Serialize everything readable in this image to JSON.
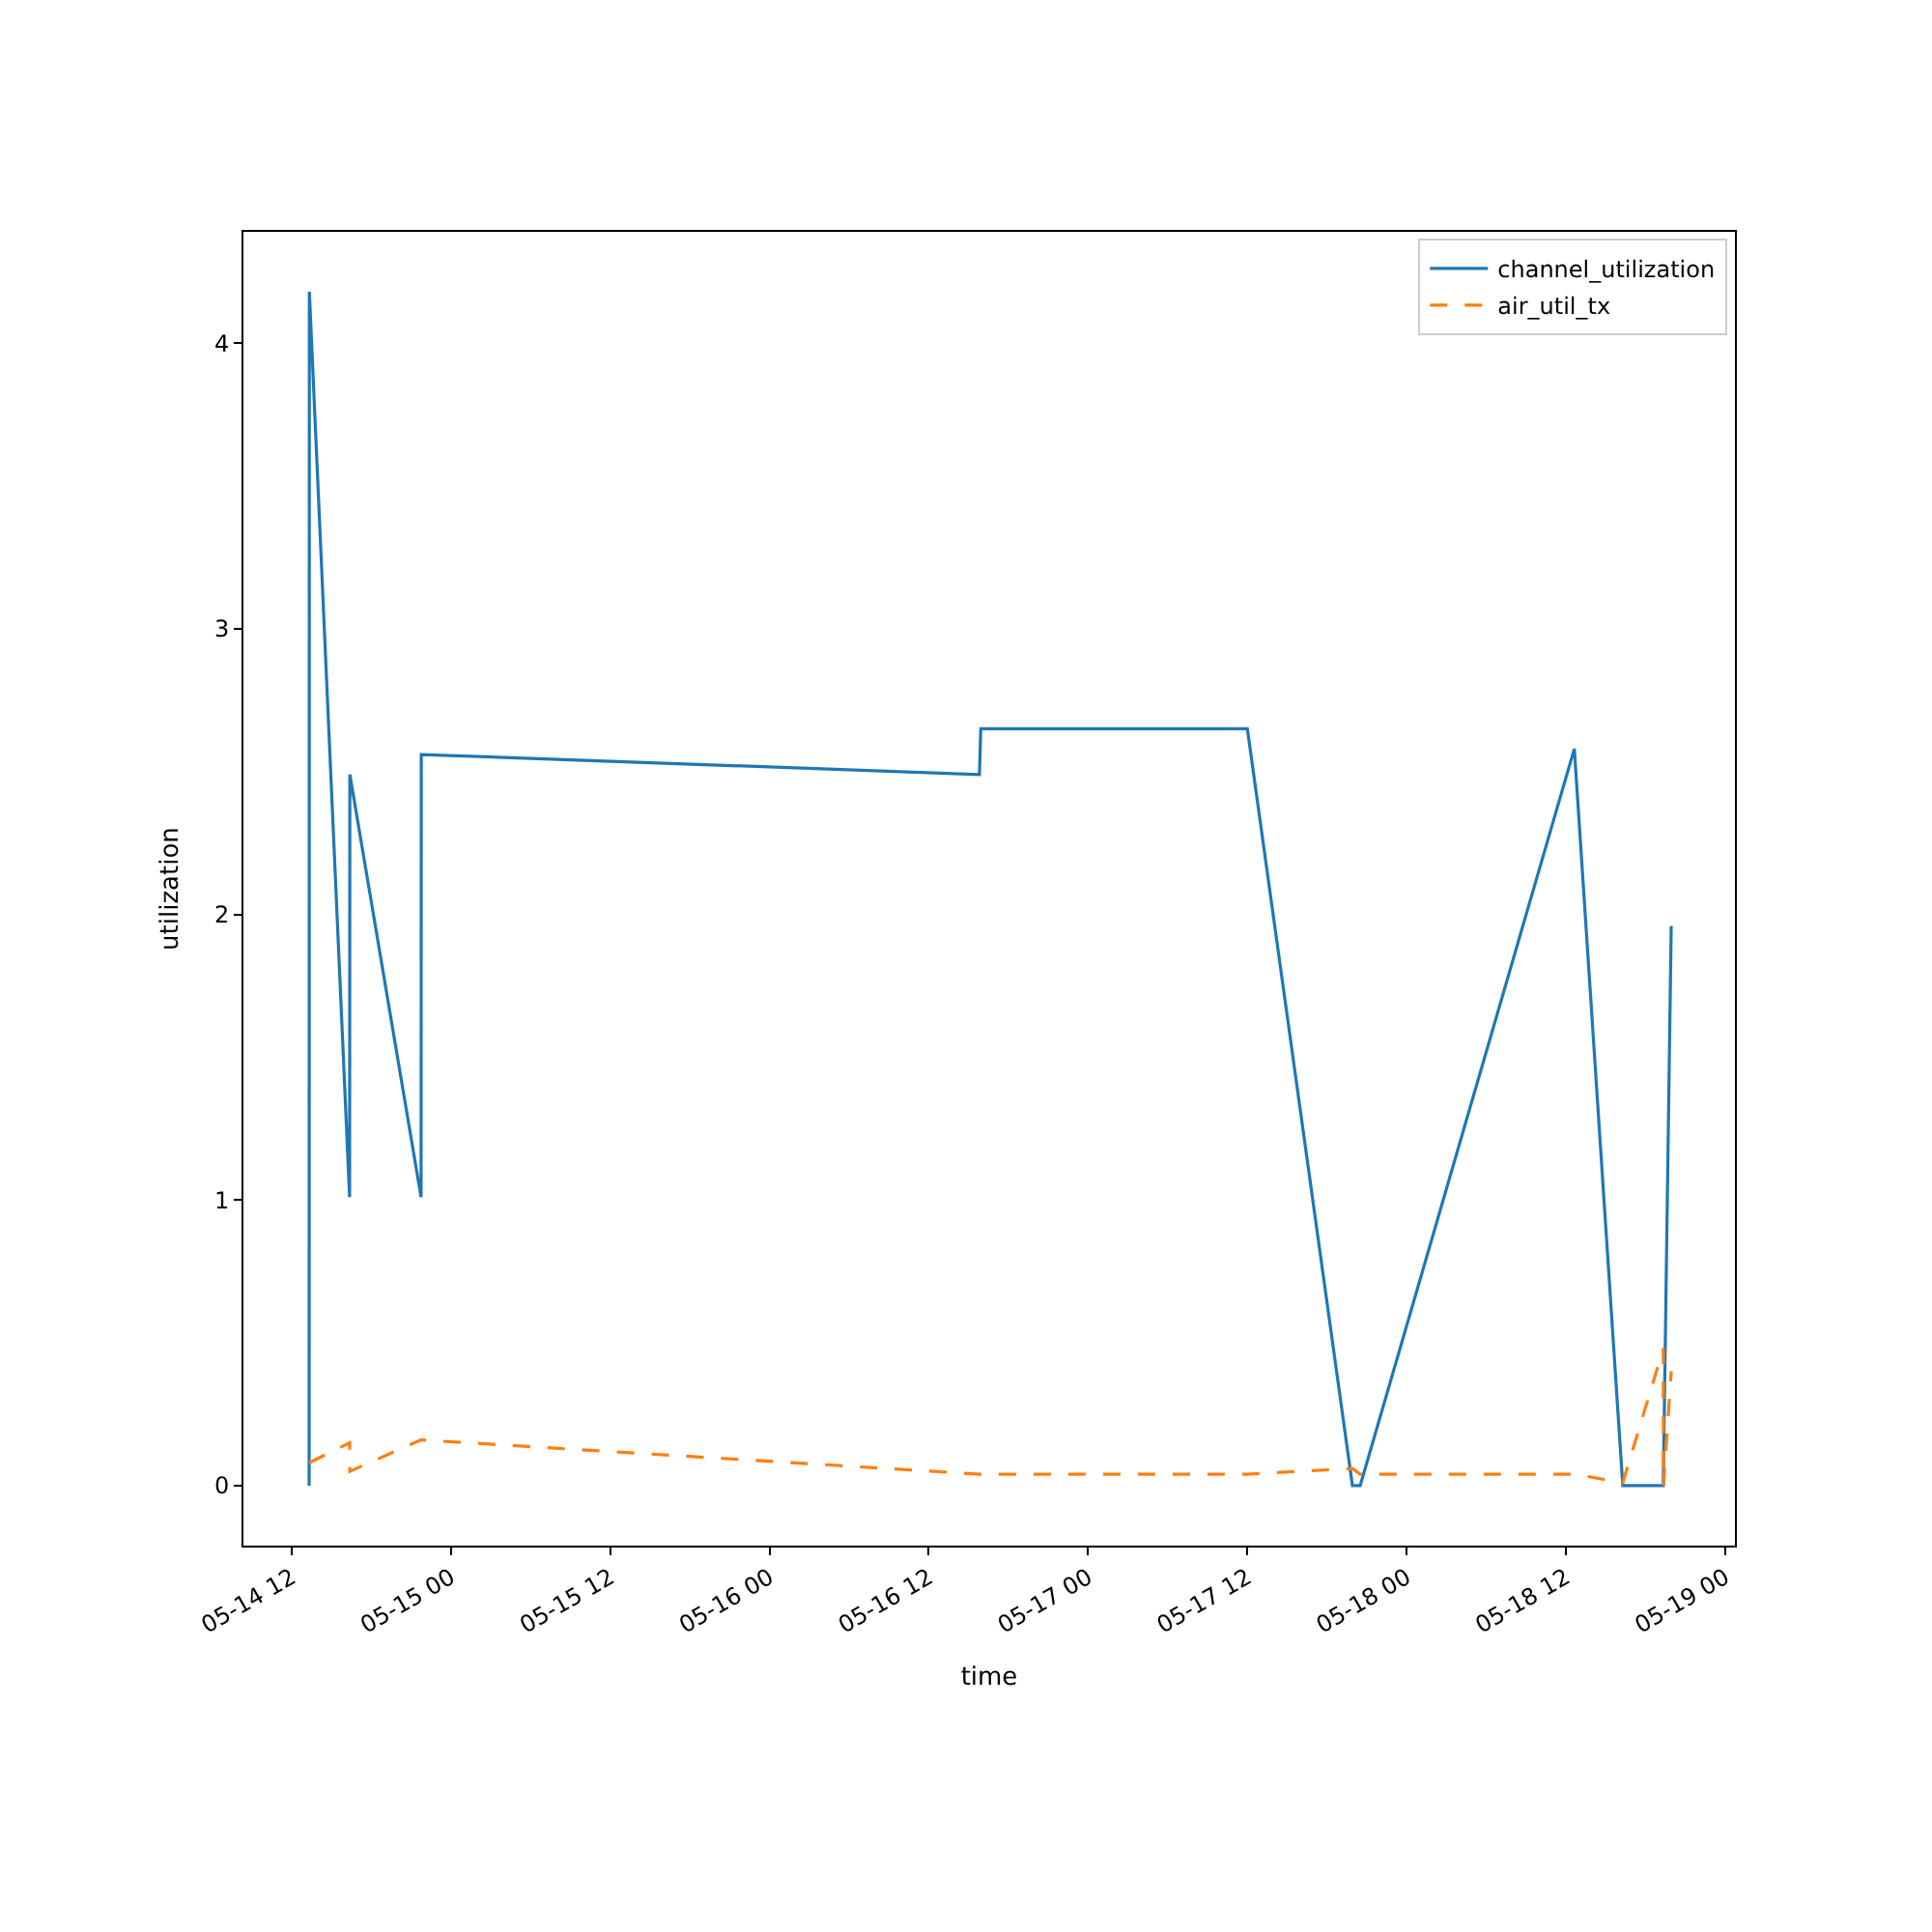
{
  "chart_data": {
    "type": "line",
    "xlabel": "time",
    "ylabel": "utilization",
    "xlim": [
      "--05-14T08:22",
      "--05-19T00:44"
    ],
    "xticks": [
      {
        "value": "--05-14T12:00",
        "label": "05-14 12"
      },
      {
        "value": "--05-15T00:00",
        "label": "05-15 00"
      },
      {
        "value": "--05-15T12:00",
        "label": "05-15 12"
      },
      {
        "value": "--05-16T00:00",
        "label": "05-16 00"
      },
      {
        "value": "--05-16T12:00",
        "label": "05-16 12"
      },
      {
        "value": "--05-17T00:00",
        "label": "05-17 00"
      },
      {
        "value": "--05-17T12:00",
        "label": "05-17 12"
      },
      {
        "value": "--05-18T00:00",
        "label": "05-18 00"
      },
      {
        "value": "--05-18T12:00",
        "label": "05-18 12"
      },
      {
        "value": "--05-19T00:00",
        "label": "05-19 00"
      }
    ],
    "ylim": [
      -0.21,
      4.39
    ],
    "yticks": [
      0,
      1,
      2,
      3,
      4
    ],
    "legend": "top right",
    "series": [
      {
        "name": "channel_utilization",
        "color": "#1f77b4",
        "line_style": "solid",
        "x": [
          "--05-14T13:19",
          "--05-14T13:20",
          "--05-14T16:22",
          "--05-14T16:23",
          "--05-14T21:45",
          "--05-14T21:46",
          "--05-16T15:49",
          "--05-16T15:55",
          "--05-17T12:00",
          "--05-17T19:55",
          "--05-17T20:30",
          "--05-18T12:38",
          "--05-18T16:17",
          "--05-18T19:20",
          "--05-18T19:56"
        ],
        "values": [
          0,
          4.18,
          1.01,
          2.49,
          1.01,
          2.56,
          2.49,
          2.65,
          2.65,
          0,
          0,
          2.58,
          0,
          0,
          1.96
        ]
      },
      {
        "name": "air_util_tx",
        "color": "#ff7f0e",
        "line_style": "dashed",
        "x": [
          "--05-14T13:19",
          "--05-14T16:22",
          "--05-14T16:23",
          "--05-14T21:45",
          "--05-16T15:49",
          "--05-17T12:00",
          "--05-17T19:55",
          "--05-17T20:30",
          "--05-18T12:38",
          "--05-18T16:17",
          "--05-18T19:20",
          "--05-18T19:21",
          "--05-18T19:56"
        ],
        "values": [
          0.08,
          0.15,
          0.05,
          0.16,
          0.04,
          0.04,
          0.06,
          0.04,
          0.04,
          0.01,
          0.48,
          0,
          0.4
        ]
      }
    ]
  }
}
